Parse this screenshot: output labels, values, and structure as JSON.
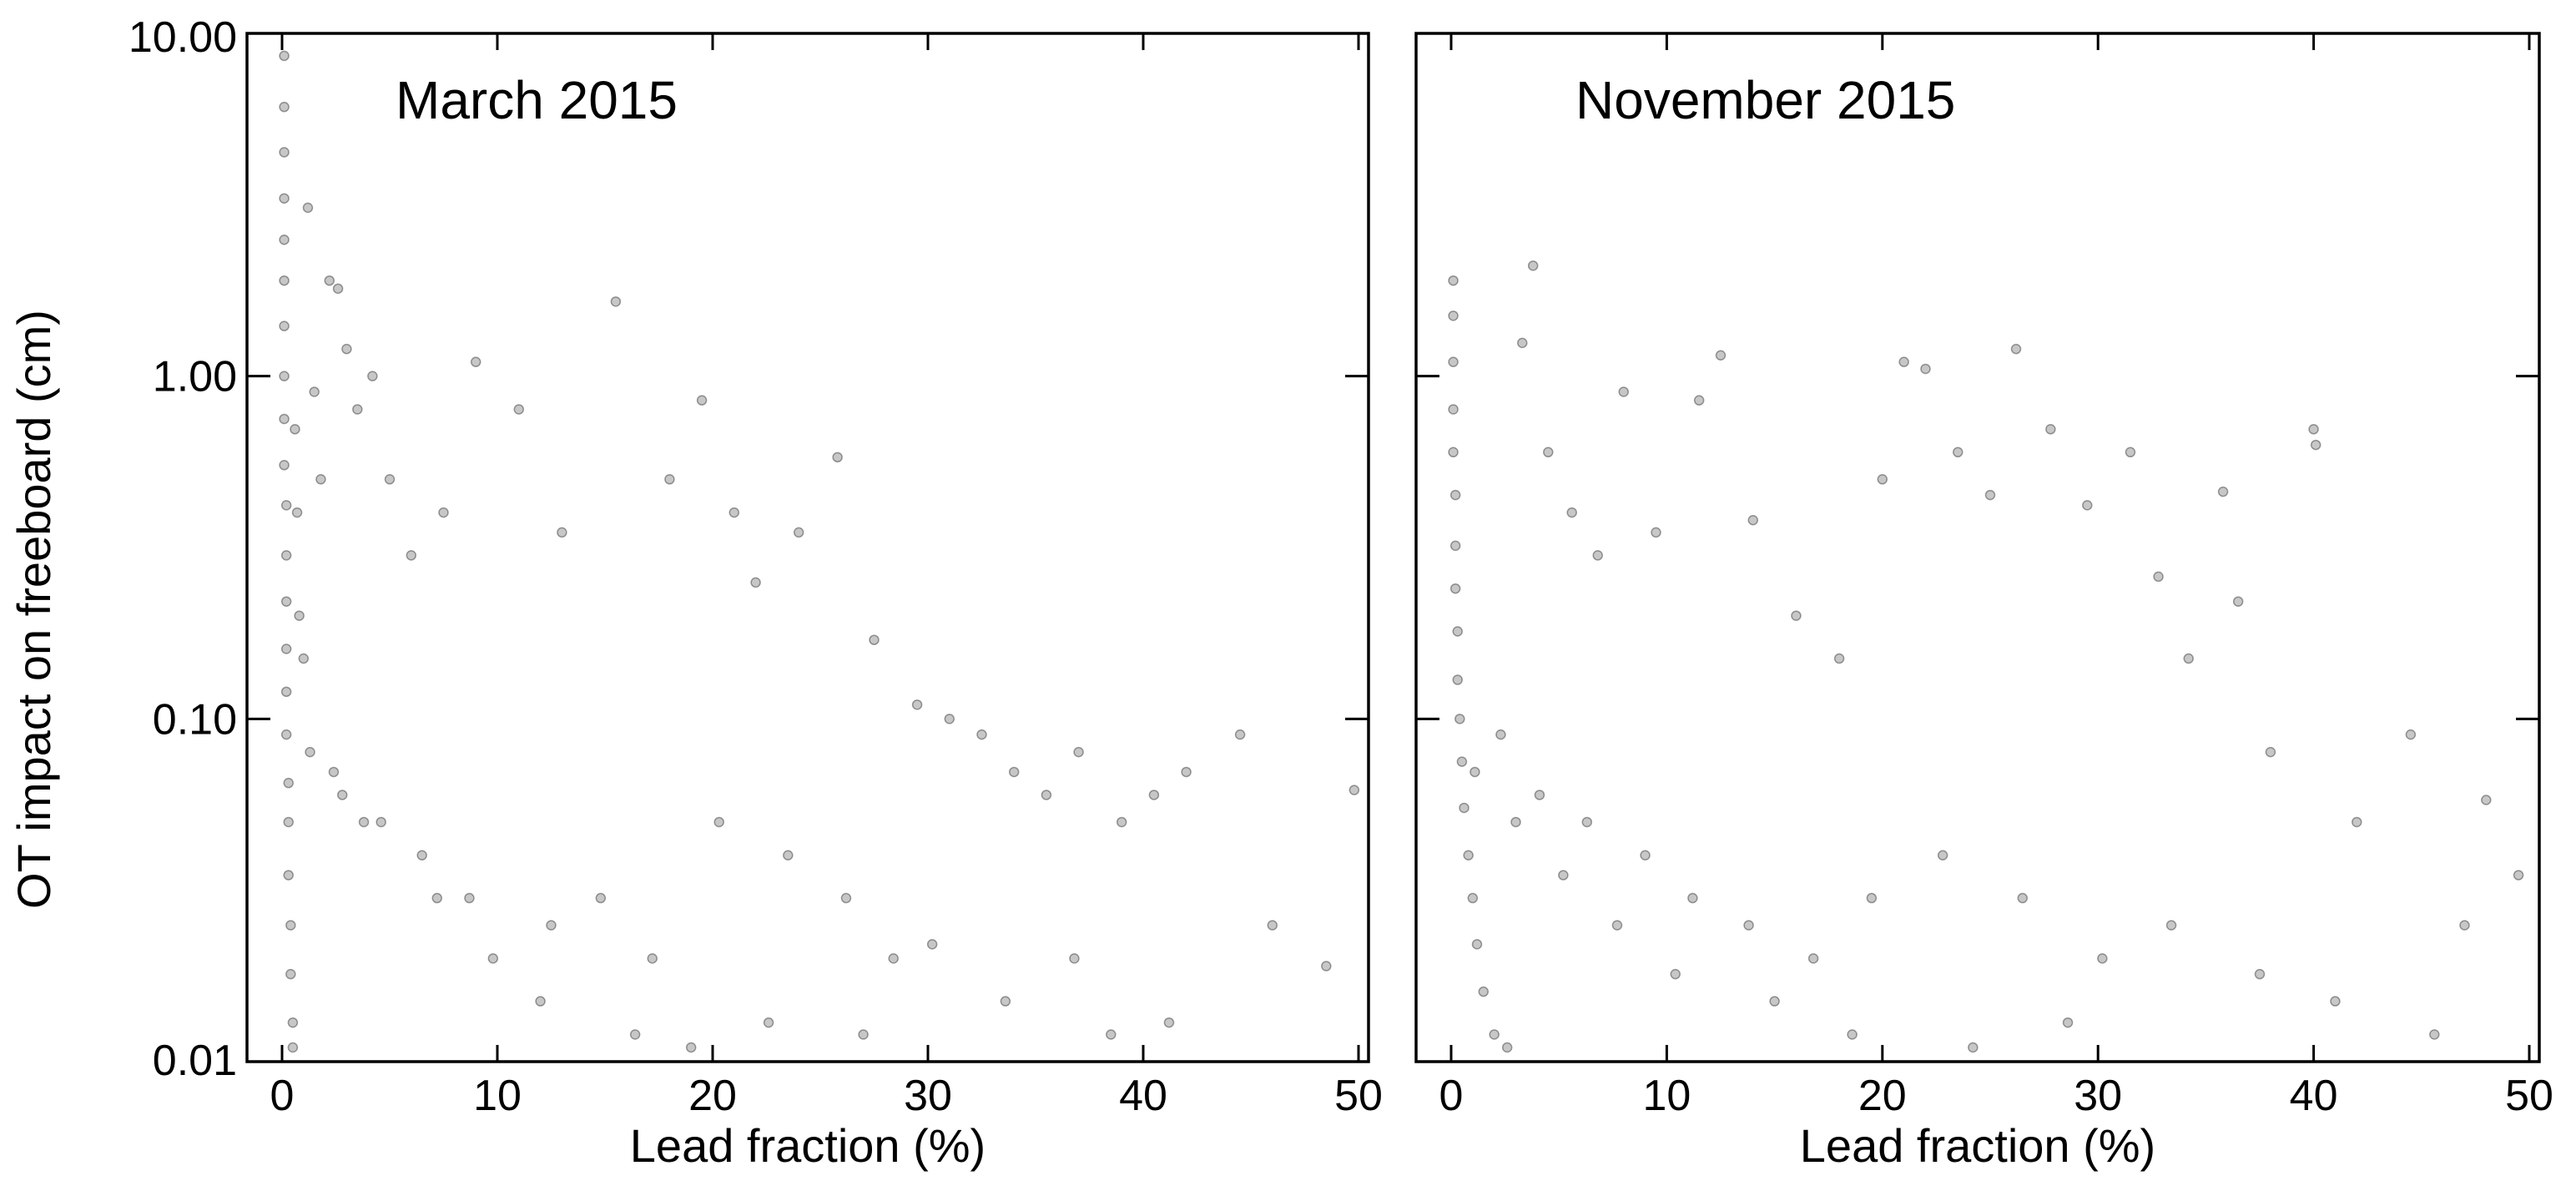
{
  "figure": {
    "ylabel": "OT impact on freeboard (cm)",
    "point_color": "#000000",
    "point_opacity": 0.22
  },
  "chart_data": [
    {
      "type": "scatter",
      "title": "March 2015",
      "xlabel": "Lead fraction (%)",
      "ylabel": "OT impact on freeboard (cm)",
      "xlim": [
        0,
        50
      ],
      "ylim": [
        0.01,
        10.0
      ],
      "yscale": "log",
      "grid": false,
      "xticks": [
        "0",
        "10",
        "20",
        "30",
        "40",
        "50"
      ],
      "yticks": [
        "0.01",
        "0.10",
        "1.00",
        "10.00"
      ],
      "series": [
        {
          "x": [
            0.1,
            0.1,
            0.1,
            0.1,
            0.1,
            0.1,
            0.1,
            0.1,
            0.1,
            0.1,
            0.2,
            0.2,
            0.2,
            0.2,
            0.2,
            0.2,
            0.3,
            0.3,
            0.3,
            0.4,
            0.4,
            0.5,
            0.5,
            0.6,
            0.7,
            0.8,
            1.0,
            1.2,
            1.5,
            1.8,
            2.2,
            2.6,
            3.0,
            3.5,
            4.2,
            5.0,
            6.0,
            7.5,
            9.0,
            11.0,
            13.0,
            15.5,
            18.0,
            19.5,
            21.0,
            22.0,
            24.0,
            25.8,
            27.5,
            29.5,
            31.0,
            32.5,
            34.0,
            35.5,
            37.0,
            39.0,
            40.5,
            42.0,
            44.5,
            46.0,
            48.5,
            49.8,
            2.4,
            3.8,
            6.5,
            8.7,
            12.5,
            14.8,
            17.2,
            20.3,
            23.5,
            26.2,
            28.4,
            30.2,
            33.6,
            36.8,
            38.5,
            41.2,
            1.3,
            2.8,
            4.6,
            7.2,
            9.8,
            12.0,
            16.4,
            19.0,
            22.6,
            27.0
          ],
          "y": [
            8.6,
            6.1,
            4.5,
            3.3,
            2.5,
            1.9,
            1.4,
            1.0,
            0.75,
            0.55,
            0.42,
            0.3,
            0.22,
            0.16,
            0.12,
            0.09,
            0.065,
            0.05,
            0.035,
            0.025,
            0.018,
            0.013,
            0.011,
            0.7,
            0.4,
            0.2,
            0.15,
            3.1,
            0.9,
            0.5,
            1.9,
            1.8,
            1.2,
            0.8,
            1.0,
            0.5,
            0.3,
            0.4,
            1.1,
            0.8,
            0.35,
            1.65,
            0.5,
            0.85,
            0.4,
            0.25,
            0.35,
            0.58,
            0.17,
            0.11,
            0.1,
            0.09,
            0.07,
            0.06,
            0.08,
            0.05,
            0.06,
            0.07,
            0.09,
            0.025,
            0.019,
            0.062,
            0.07,
            0.05,
            0.04,
            0.03,
            0.025,
            0.03,
            0.02,
            0.05,
            0.04,
            0.03,
            0.02,
            0.022,
            0.015,
            0.02,
            0.012,
            0.013,
            0.08,
            0.06,
            0.05,
            0.03,
            0.02,
            0.015,
            0.012,
            0.011,
            0.013,
            0.012
          ]
        }
      ]
    },
    {
      "type": "scatter",
      "title": "November 2015",
      "xlabel": "Lead fraction (%)",
      "ylabel": "",
      "xlim": [
        0,
        50
      ],
      "ylim": [
        0.01,
        10.0
      ],
      "yscale": "log",
      "grid": false,
      "xticks": [
        "0",
        "10",
        "20",
        "30",
        "40",
        "50"
      ],
      "yticks": [
        "0.01",
        "0.10",
        "1.00",
        "10.00"
      ],
      "series": [
        {
          "x": [
            0.1,
            0.1,
            0.1,
            0.1,
            0.1,
            0.2,
            0.2,
            0.2,
            0.3,
            0.3,
            0.4,
            0.5,
            0.6,
            0.8,
            1.0,
            1.2,
            1.5,
            2.0,
            2.6,
            3.3,
            3.8,
            4.5,
            5.6,
            6.8,
            8.0,
            9.5,
            11.5,
            12.5,
            14.0,
            16.0,
            18.0,
            20.0,
            21.0,
            22.0,
            23.5,
            25.0,
            26.2,
            27.8,
            29.5,
            31.5,
            32.8,
            34.2,
            35.8,
            36.5,
            38.0,
            40.0,
            40.1,
            42.0,
            44.5,
            47.0,
            48.0,
            49.5,
            2.3,
            4.1,
            6.3,
            9.0,
            11.2,
            13.8,
            16.8,
            19.5,
            22.8,
            26.5,
            30.2,
            33.4,
            37.5,
            41.0,
            45.6,
            1.1,
            3.0,
            5.2,
            7.7,
            10.4,
            15.0,
            18.6,
            24.2,
            28.6
          ],
          "y": [
            1.9,
            1.5,
            1.1,
            0.8,
            0.6,
            0.45,
            0.32,
            0.24,
            0.18,
            0.13,
            0.1,
            0.075,
            0.055,
            0.04,
            0.03,
            0.022,
            0.016,
            0.012,
            0.011,
            1.25,
            2.1,
            0.6,
            0.4,
            0.3,
            0.9,
            0.35,
            0.85,
            1.15,
            0.38,
            0.2,
            0.15,
            0.5,
            1.1,
            1.05,
            0.6,
            0.45,
            1.2,
            0.7,
            0.42,
            0.6,
            0.26,
            0.15,
            0.46,
            0.22,
            0.08,
            0.7,
            0.63,
            0.05,
            0.09,
            0.025,
            0.058,
            0.035,
            0.09,
            0.06,
            0.05,
            0.04,
            0.03,
            0.025,
            0.02,
            0.03,
            0.04,
            0.03,
            0.02,
            0.025,
            0.018,
            0.015,
            0.012,
            0.07,
            0.05,
            0.035,
            0.025,
            0.018,
            0.015,
            0.012,
            0.011,
            0.013
          ]
        }
      ]
    }
  ]
}
